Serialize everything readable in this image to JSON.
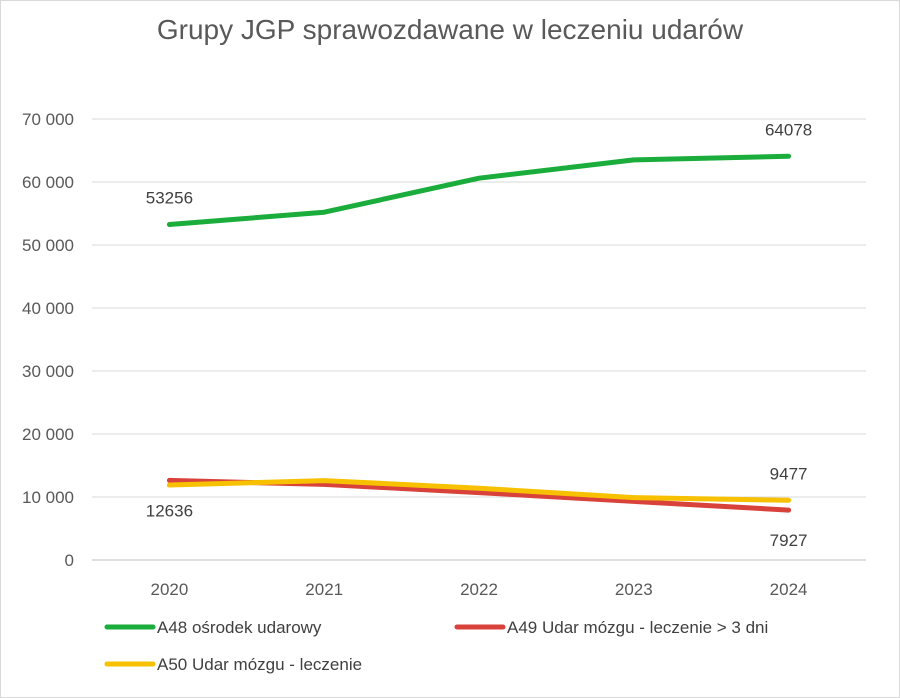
{
  "chart_data": {
    "type": "line",
    "title": "Grupy JGP sprawozdawane w leczeniu udarów",
    "categories": [
      "2020",
      "2021",
      "2022",
      "2023",
      "2024"
    ],
    "ylim": [
      0,
      70000
    ],
    "yticks": [
      0,
      10000,
      20000,
      30000,
      40000,
      50000,
      60000,
      70000
    ],
    "ytick_labels": [
      "0",
      "10 000",
      "20 000",
      "30 000",
      "40 000",
      "50 000",
      "60 000",
      "70 000"
    ],
    "grid": true,
    "legend_position": "bottom",
    "series": [
      {
        "name": "A48 ośrodek udarowy",
        "color": "#1aad3c",
        "values": [
          53256,
          55200,
          60600,
          63500,
          64078
        ]
      },
      {
        "name": "A49 Udar mózgu - leczenie > 3 dni",
        "color": "#d9423a",
        "values": [
          12636,
          12000,
          10700,
          9300,
          7927
        ]
      },
      {
        "name": "A50 Udar mózgu - leczenie",
        "color": "#f7c100",
        "values": [
          11900,
          12600,
          11400,
          9900,
          9477
        ]
      }
    ],
    "data_labels": [
      {
        "series": 0,
        "index": 0,
        "text": "53256"
      },
      {
        "series": 0,
        "index": 4,
        "text": "64078"
      },
      {
        "series": 1,
        "index": 0,
        "text": "12636"
      },
      {
        "series": 1,
        "index": 4,
        "text": "7927"
      },
      {
        "series": 2,
        "index": 4,
        "text": "9477"
      }
    ]
  }
}
